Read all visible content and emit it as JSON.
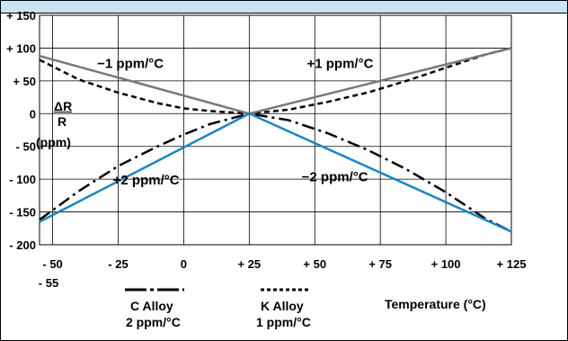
{
  "chart_data": {
    "type": "line",
    "xlabel": "Temperature (°C)",
    "ylabel": {
      "numerator": "ΔR",
      "denominator": "R",
      "unit": "(ppm)"
    },
    "x_ticks": [
      "- 50",
      "- 25",
      "0",
      "+ 25",
      "+ 50",
      "+ 75",
      "+ 100",
      "+ 125"
    ],
    "x_extra_tick": "- 55",
    "y_ticks": [
      "+ 150",
      "+ 100",
      "+ 50",
      "0",
      "- 50",
      "- 100",
      "- 150",
      "- 200"
    ],
    "xlim": [
      -55,
      125
    ],
    "ylim": [
      -200,
      150
    ],
    "grid": true,
    "series": [
      {
        "name": "C Alloy",
        "style": "dash-dot",
        "color": "#000000",
        "x": [
          -55,
          -40,
          -25,
          -10,
          0,
          10,
          25,
          40,
          55,
          70,
          85,
          100,
          115,
          125
        ],
        "y": [
          -162,
          -118,
          -80,
          -50,
          -32,
          -16,
          0,
          -10,
          -30,
          -55,
          -85,
          -120,
          -160,
          -180
        ]
      },
      {
        "name": "K Alloy",
        "style": "dashed",
        "color": "#000000",
        "x": [
          -55,
          -40,
          -25,
          -10,
          0,
          10,
          25,
          40,
          55,
          70,
          85,
          100,
          115,
          125
        ],
        "y": [
          82,
          52,
          32,
          16,
          8,
          4,
          0,
          6,
          18,
          32,
          50,
          70,
          90,
          100
        ]
      },
      {
        "name": "−1 ppm/°C",
        "style": "solid",
        "color": "#787878",
        "x": [
          -55,
          25
        ],
        "y": [
          88,
          0
        ]
      },
      {
        "name": "+1 ppm/°C",
        "style": "solid",
        "color": "#787878",
        "x": [
          25,
          125
        ],
        "y": [
          0,
          100
        ]
      },
      {
        "name": "+2 ppm/°C",
        "style": "solid",
        "color": "#1a85c4",
        "x": [
          -55,
          25
        ],
        "y": [
          -165,
          0
        ]
      },
      {
        "name": "−2 ppm/°C",
        "style": "solid",
        "color": "#1a85c4",
        "x": [
          25,
          125
        ],
        "y": [
          0,
          -180
        ]
      }
    ],
    "annotations": [
      "−1 ppm/°C",
      "+1 ppm/°C",
      "+2 ppm/°C",
      "−2 ppm/°C"
    ]
  },
  "legend": {
    "c_alloy": {
      "line1": "C Alloy",
      "line2": "2 ppm/°C"
    },
    "k_alloy": {
      "line1": "K Alloy",
      "line2": "1 ppm/°C"
    }
  }
}
